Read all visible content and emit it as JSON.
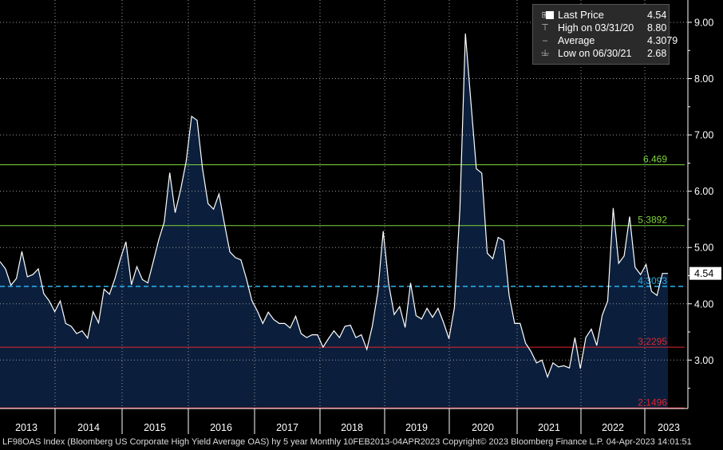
{
  "chart_data": {
    "type": "area",
    "title": "",
    "ylim": [
      2.2,
      9.25
    ],
    "yticks": [
      "3.00",
      "4.00",
      "5.00",
      "6.00",
      "7.00",
      "8.00",
      "9.00"
    ],
    "xticks": [
      "2013",
      "2014",
      "2015",
      "2016",
      "2017",
      "2018",
      "2019",
      "2020",
      "2021",
      "2022",
      "2023"
    ],
    "grid": true,
    "series": [
      {
        "name": "Last Price",
        "color": "#ffffff",
        "fill": "#0b1f3c",
        "values": [
          4.75,
          4.62,
          4.33,
          4.45,
          4.93,
          4.48,
          4.52,
          4.62,
          4.18,
          4.05,
          3.86,
          4.05,
          3.65,
          3.6,
          3.47,
          3.52,
          3.39,
          3.86,
          3.66,
          4.26,
          4.17,
          4.45,
          4.8,
          5.1,
          4.34,
          4.66,
          4.43,
          4.37,
          4.75,
          5.14,
          5.45,
          6.33,
          5.62,
          6.03,
          6.53,
          7.33,
          7.26,
          6.4,
          5.78,
          5.68,
          5.95,
          5.42,
          4.92,
          4.82,
          4.78,
          4.45,
          4.06,
          3.87,
          3.65,
          3.85,
          3.72,
          3.65,
          3.65,
          3.57,
          3.78,
          3.47,
          3.4,
          3.45,
          3.45,
          3.23,
          3.38,
          3.52,
          3.4,
          3.6,
          3.62,
          3.4,
          3.45,
          3.19,
          3.6,
          4.2,
          5.29,
          4.35,
          3.81,
          3.95,
          3.58,
          4.37,
          3.79,
          3.73,
          3.92,
          3.76,
          3.92,
          3.67,
          3.38,
          3.93,
          5.68,
          8.8,
          7.6,
          6.4,
          6.32,
          4.9,
          4.8,
          5.18,
          5.12,
          4.15,
          3.65,
          3.65,
          3.3,
          3.15,
          2.95,
          3.0,
          2.7,
          2.95,
          2.88,
          2.9,
          2.86,
          3.4,
          2.85,
          3.4,
          3.55,
          3.26,
          3.8,
          4.05,
          5.7,
          4.72,
          4.85,
          5.55,
          4.65,
          4.52,
          4.7,
          4.22,
          4.15,
          4.54,
          4.54
        ]
      }
    ],
    "reference_lines": [
      {
        "label": "6.469",
        "value": 6.469,
        "color": "#7fd63a",
        "style": "solid"
      },
      {
        "label": "5.3892",
        "value": 5.3892,
        "color": "#7fd63a",
        "style": "solid"
      },
      {
        "label": "4.3093",
        "value": 4.3093,
        "color": "#27a9e1",
        "style": "dashed"
      },
      {
        "label": "3.2295",
        "value": 3.2295,
        "color": "#e0252c",
        "style": "solid"
      },
      {
        "label": "2.1496",
        "value": 2.1496,
        "color": "#e0252c",
        "style": "solid"
      }
    ],
    "last_value_label": "4.54"
  },
  "legend": {
    "rows": [
      {
        "label": "Last Price",
        "value": "4.54"
      },
      {
        "label": "High on 03/31/20",
        "value": "8.80"
      },
      {
        "label": "Average",
        "value": "4.3079"
      },
      {
        "label": "Low on 06/30/21",
        "value": "2.68"
      }
    ]
  },
  "footer": "LF98OAS Index (Bloomberg US Corporate High Yield Average OAS) hy 5 year  Monthly 10FEB2013-04APR2023  Copyright© 2023 Bloomberg Finance L.P.  04-Apr-2023 14:01:51"
}
